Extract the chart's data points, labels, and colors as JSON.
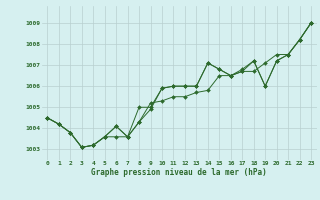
{
  "xlabel": "Graphe pression niveau de la mer (hPa)",
  "background_color": "#d6f0f0",
  "grid_color": "#b8d0d0",
  "line_color": "#2d6a2d",
  "xlim": [
    -0.5,
    23.5
  ],
  "ylim": [
    1002.5,
    1009.8
  ],
  "xticks": [
    0,
    1,
    2,
    3,
    4,
    5,
    6,
    7,
    8,
    9,
    10,
    11,
    12,
    13,
    14,
    15,
    16,
    17,
    18,
    19,
    20,
    21,
    22,
    23
  ],
  "yticks": [
    1003,
    1004,
    1005,
    1006,
    1007,
    1008,
    1009
  ],
  "series": [
    [
      1004.5,
      1004.2,
      1003.8,
      1003.1,
      1003.2,
      1003.6,
      1003.6,
      1003.6,
      1005.0,
      1005.0,
      1005.9,
      1006.0,
      1006.0,
      1006.0,
      1007.1,
      1006.8,
      1006.5,
      1006.8,
      1007.2,
      1006.0,
      1007.2,
      1007.5,
      1008.2,
      1009.0
    ],
    [
      1004.5,
      1004.2,
      1003.8,
      1003.1,
      1003.2,
      1003.6,
      1004.1,
      1003.6,
      1004.3,
      1005.2,
      1005.3,
      1005.5,
      1005.5,
      1005.7,
      1005.8,
      1006.5,
      1006.5,
      1006.7,
      1006.7,
      1007.1,
      1007.5,
      1007.5,
      1008.2,
      1009.0
    ],
    [
      1004.5,
      1004.2,
      1003.8,
      1003.1,
      1003.2,
      1003.6,
      1004.1,
      1003.6,
      1004.3,
      1004.9,
      1005.9,
      1006.0,
      1006.0,
      1006.0,
      1007.1,
      1006.8,
      1006.5,
      1006.7,
      1007.2,
      1006.0,
      1007.2,
      1007.5,
      1008.2,
      1009.0
    ]
  ]
}
